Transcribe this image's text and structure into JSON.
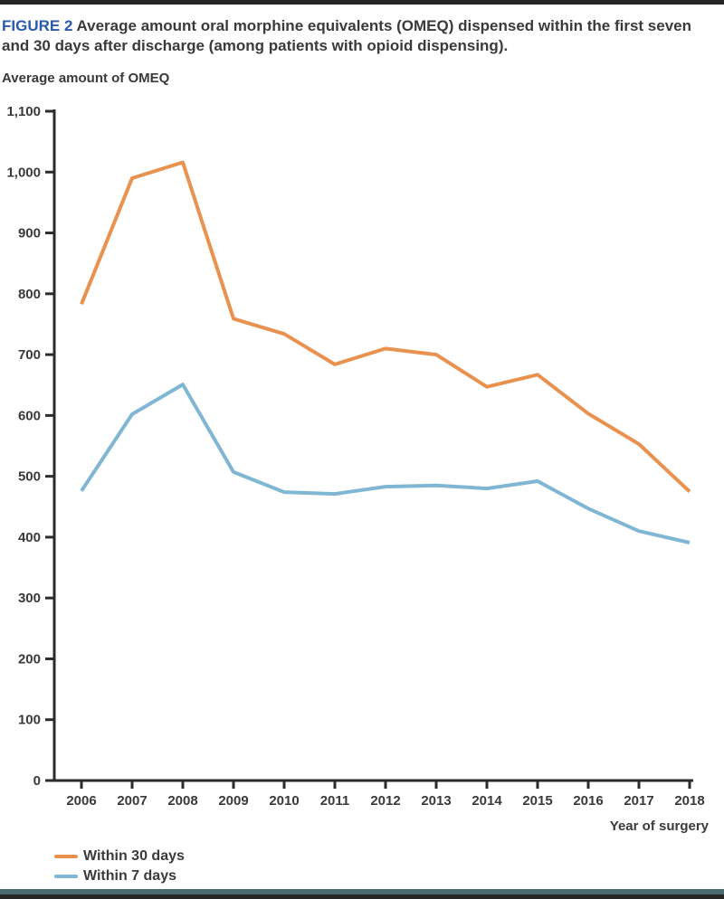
{
  "page": {
    "figure_label": "FIGURE 2",
    "figure_title": "Average amount oral morphine equivalents (OMEQ) dispensed within the first seven and 30 days after discharge (among patients with opioid dispensing).",
    "axis_title": "Average amount of OMEQ",
    "x_axis_caption": "Year of surgery"
  },
  "colors": {
    "figure_label_blue": "#2a5ba8",
    "text_dark": "#3a3a3a",
    "axis_dark": "#2b2b2b",
    "series_within_30_days": "#e9914e",
    "series_within_7_days": "#7fb6d3",
    "top_bar": "#262626",
    "bottom_bar_teal": "#4c6a72",
    "bottom_bar_dark": "#262626"
  },
  "legend": {
    "items": [
      {
        "label": "Within 30 days",
        "color": "#e9914e"
      },
      {
        "label": "Within 7 days",
        "color": "#7fb6d3"
      }
    ]
  },
  "chart_data": {
    "type": "line",
    "title": "Average amount oral morphine equivalents (OMEQ) dispensed within the first seven and 30 days after discharge (among patients with opioid dispensing).",
    "xlabel": "Year of surgery",
    "ylabel": "Average amount of OMEQ",
    "categories": [
      2006,
      2007,
      2008,
      2009,
      2010,
      2011,
      2012,
      2013,
      2014,
      2015,
      2016,
      2017,
      2018
    ],
    "series": [
      {
        "name": "Within 30 days",
        "color": "#e9914e",
        "values": [
          783,
          990,
          1016,
          759,
          734,
          684,
          710,
          700,
          647,
          667,
          603,
          553,
          475
        ]
      },
      {
        "name": "Within 7 days",
        "color": "#7fb6d3",
        "values": [
          476,
          602,
          651,
          507,
          474,
          471,
          483,
          485,
          480,
          492,
          447,
          410,
          391
        ]
      }
    ],
    "ylim": [
      0,
      1100
    ],
    "y_tick_step": 100,
    "grid": false,
    "legend_position": "bottom-left"
  }
}
